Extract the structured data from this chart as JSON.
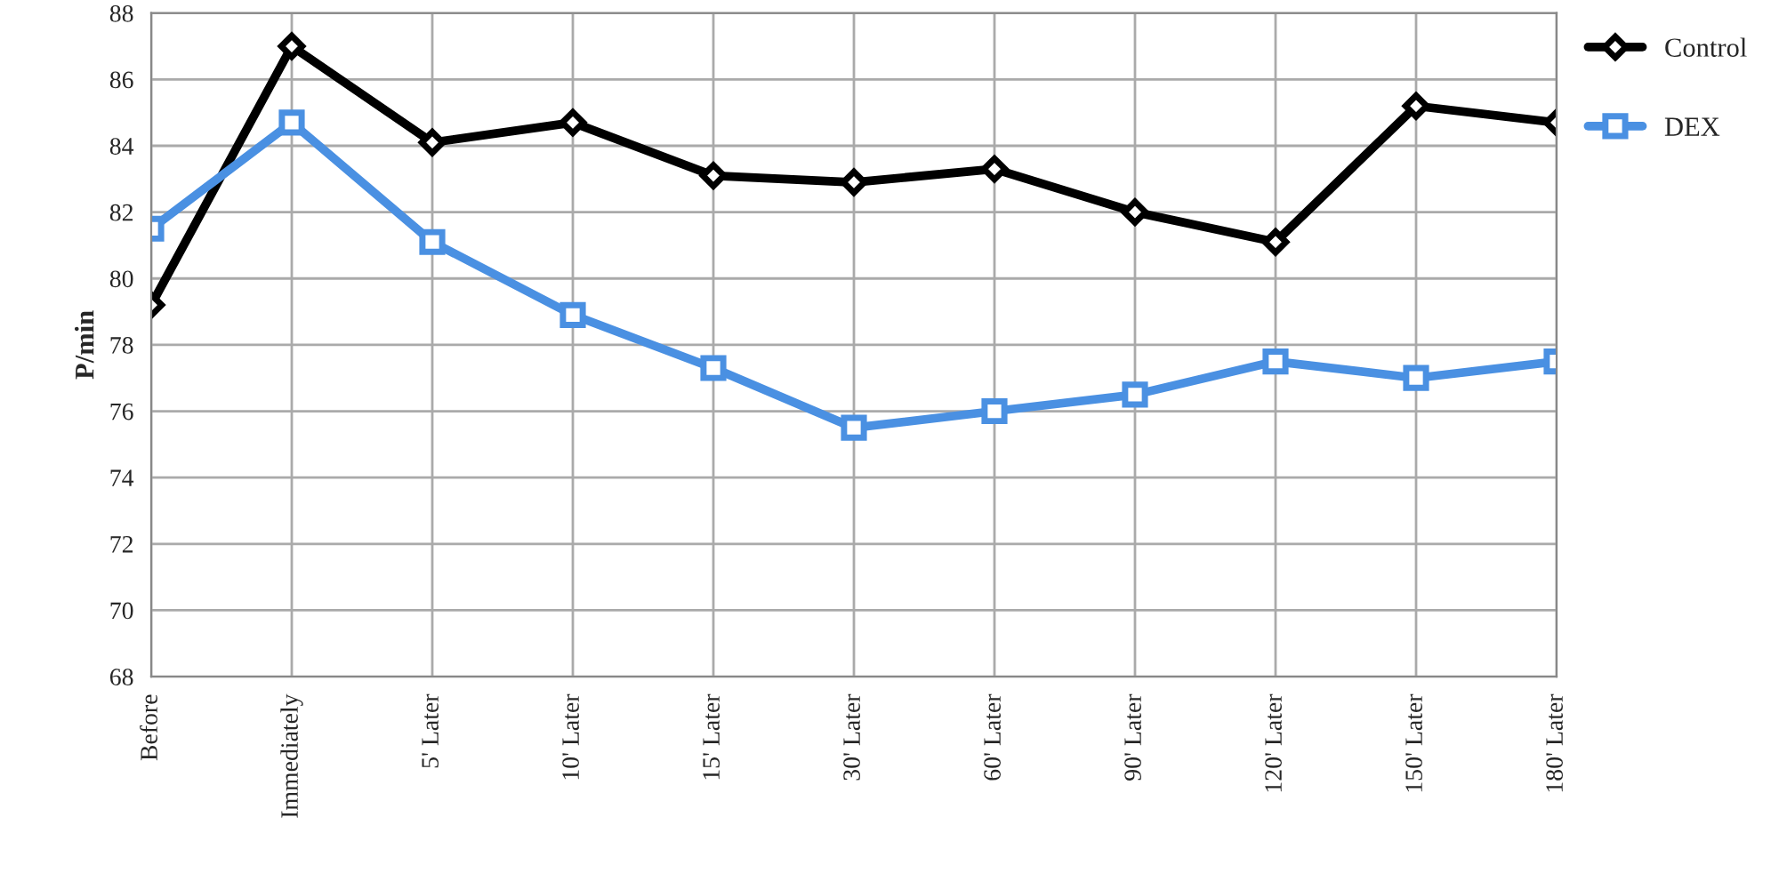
{
  "chart_data": {
    "type": "line",
    "ylabel": "P/min",
    "categories": [
      "Before",
      "Immediately",
      "5' Later",
      "10' Later",
      "15' Later",
      "30' Later",
      "60' Later",
      "90' Later",
      "120' Later",
      "150' Later",
      "180' Later"
    ],
    "series": [
      {
        "name": "Control",
        "color": "#000000",
        "marker": "diamond",
        "values": [
          79.2,
          87.0,
          84.1,
          84.7,
          83.1,
          82.9,
          83.3,
          82.0,
          81.1,
          85.2,
          84.7
        ]
      },
      {
        "name": "DEX",
        "color": "#4a90e2",
        "marker": "square",
        "values": [
          81.5,
          84.7,
          81.1,
          78.9,
          77.3,
          75.5,
          76.0,
          76.5,
          77.5,
          77.0,
          77.5
        ]
      }
    ],
    "ylim": [
      68,
      88
    ],
    "yticks": [
      68,
      70,
      72,
      74,
      76,
      78,
      80,
      82,
      84,
      86,
      88
    ],
    "grid": true,
    "legend": "top right",
    "line_style": "solid"
  }
}
